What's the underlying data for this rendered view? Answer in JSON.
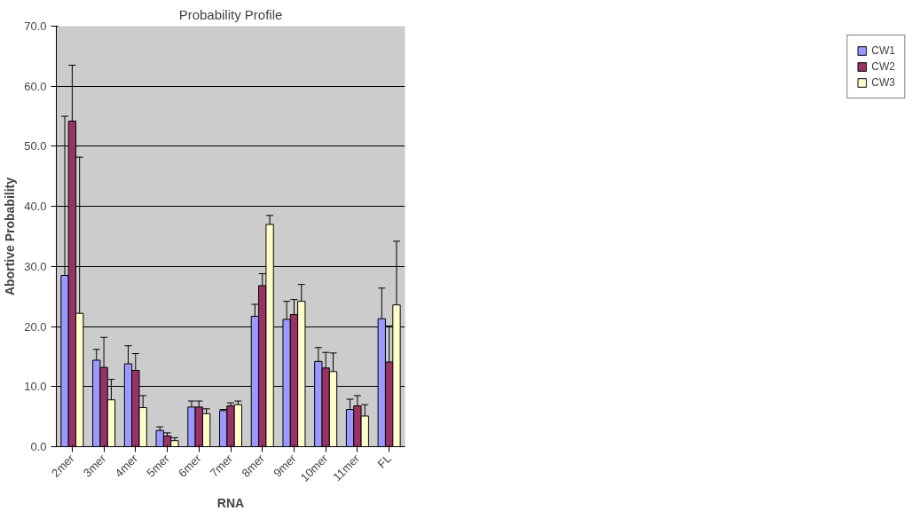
{
  "chart_data": {
    "type": "bar",
    "title": "Probability Profile",
    "xlabel": "RNA",
    "ylabel": "Abortive Probability",
    "categories": [
      "2mer",
      "3mer",
      "4mer",
      "5mer",
      "6mer",
      "7mer",
      "8mer",
      "9mer",
      "10mer",
      "11mer",
      "FL"
    ],
    "series": [
      {
        "name": "CW1",
        "color": "#9999ff",
        "values": [
          28.5,
          14.4,
          13.8,
          2.7,
          6.6,
          6.0,
          21.7,
          21.2,
          14.2,
          6.2,
          21.3
        ],
        "errors": [
          26.5,
          1.8,
          3.0,
          0.6,
          1.0,
          0.2,
          2.0,
          3.0,
          2.3,
          1.7,
          5.1
        ]
      },
      {
        "name": "CW2",
        "color": "#993366",
        "values": [
          54.2,
          13.2,
          12.7,
          1.8,
          6.6,
          6.8,
          26.8,
          22.0,
          13.1,
          6.8,
          14.1
        ],
        "errors": [
          9.3,
          5.0,
          2.8,
          0.5,
          1.0,
          0.5,
          2.0,
          2.5,
          2.6,
          1.7,
          6.0
        ]
      },
      {
        "name": "CW3",
        "color": "#ffffcc",
        "values": [
          22.2,
          7.8,
          6.5,
          1.0,
          5.5,
          7.0,
          37.0,
          24.2,
          12.5,
          5.1,
          23.6
        ],
        "errors": [
          26.0,
          3.4,
          2.0,
          0.5,
          0.8,
          0.6,
          1.5,
          2.8,
          3.1,
          1.9,
          10.6
        ]
      }
    ],
    "ylim": [
      0,
      70
    ],
    "yticks": [
      {
        "value": 0,
        "label": "0.0"
      },
      {
        "value": 10,
        "label": "10.0"
      },
      {
        "value": 20,
        "label": "20.0"
      },
      {
        "value": 30,
        "label": "30.0"
      },
      {
        "value": 40,
        "label": "40.0"
      },
      {
        "value": 50,
        "label": "50.0"
      },
      {
        "value": 60,
        "label": "60.0"
      },
      {
        "value": 70,
        "label": "70.0"
      }
    ],
    "grid": "y",
    "legend": "right"
  }
}
